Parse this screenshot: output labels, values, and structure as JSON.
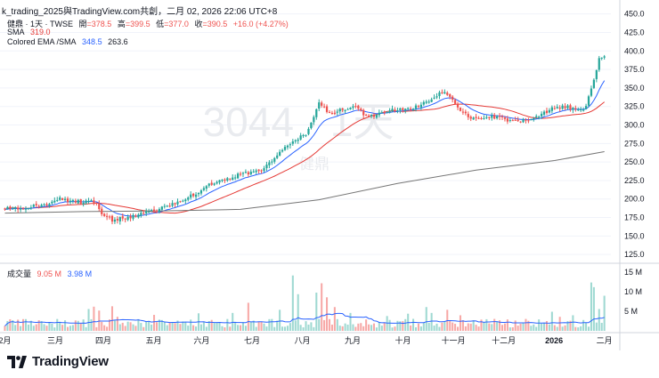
{
  "header": {
    "caption": "k_trading_2025與TradingView.com共創，二月 02, 2026 22:06 UTC+8"
  },
  "legend": {
    "symbol": "健鼎 · 1天 · TWSE",
    "open_label": "開",
    "open": "=378.5",
    "high_label": "高",
    "high": "=399.5",
    "low_label": "低",
    "low": "=377.0",
    "close_label": "收",
    "close": "=390.5",
    "change": "+16.0 (+4.27%)",
    "sma_label": "SMA",
    "sma_value": "319.0",
    "ema_label": "Colored EMA /SMA",
    "ema_value": "348.5",
    "ema_value2": "263.6",
    "volume_label": "成交量",
    "volume_value": "9.05 M",
    "volume_value2": "3.98 M"
  },
  "watermark": {
    "code": "3044 · 1天",
    "name": "健鼎"
  },
  "branding": {
    "name": "TradingView"
  },
  "colors": {
    "up": "#26a69a",
    "down": "#ef5350",
    "up_vol": "#9fd9d2",
    "down_vol": "#f7a9a7",
    "ema": "#2962ff",
    "sma": "#e53935",
    "sma200": "#757575",
    "volume_ma": "#2962ff",
    "grid": "#f0f3fa",
    "axis_text": "#131722"
  },
  "chart_data": {
    "type": "candlestick",
    "title": "健鼎 · 1天 · TWSE",
    "price_axis": {
      "ticks": [
        125,
        150,
        175,
        200,
        225,
        250,
        275,
        300,
        325,
        350,
        375,
        400,
        425,
        450
      ],
      "range": [
        118,
        452
      ]
    },
    "volume_axis": {
      "ticks": [
        "5 M",
        "10 M",
        "15 M"
      ],
      "tick_values": [
        5,
        10,
        15
      ],
      "range": [
        0,
        15.5
      ]
    },
    "x_axis": {
      "labels": [
        "2月",
        "三月",
        "四月",
        "五月",
        "六月",
        "七月",
        "八月",
        "九月",
        "十月",
        "十一月",
        "十二月",
        "2026",
        "二月"
      ]
    },
    "price_path": [
      [
        0,
        187
      ],
      [
        10,
        189
      ],
      [
        17,
        192
      ],
      [
        21,
        201
      ],
      [
        25,
        198
      ],
      [
        30,
        196
      ],
      [
        34,
        197
      ],
      [
        36,
        196
      ],
      [
        38,
        180
      ],
      [
        42,
        172
      ],
      [
        47,
        175
      ],
      [
        51,
        178
      ],
      [
        56,
        182
      ],
      [
        60,
        186
      ],
      [
        65,
        193
      ],
      [
        70,
        201
      ],
      [
        75,
        210
      ],
      [
        80,
        221
      ],
      [
        85,
        226
      ],
      [
        90,
        233
      ],
      [
        95,
        236
      ],
      [
        100,
        241
      ],
      [
        106,
        262
      ],
      [
        111,
        278
      ],
      [
        116,
        288
      ],
      [
        121,
        328
      ],
      [
        125,
        317
      ],
      [
        130,
        320
      ],
      [
        135,
        324
      ],
      [
        140,
        310
      ],
      [
        145,
        317
      ],
      [
        150,
        322
      ],
      [
        155,
        321
      ],
      [
        160,
        327
      ],
      [
        164,
        336
      ],
      [
        168,
        345
      ],
      [
        171,
        339
      ],
      [
        175,
        320
      ],
      [
        180,
        308
      ],
      [
        185,
        311
      ],
      [
        190,
        309
      ],
      [
        195,
        305
      ],
      [
        200,
        307
      ],
      [
        205,
        312
      ],
      [
        210,
        322
      ],
      [
        215,
        325
      ],
      [
        220,
        321
      ],
      [
        222,
        318
      ],
      [
        224,
        338
      ],
      [
        226,
        362
      ],
      [
        228,
        388
      ],
      [
        230,
        391
      ]
    ],
    "sma200_path": [
      [
        0,
        181
      ],
      [
        30,
        183
      ],
      [
        60,
        184
      ],
      [
        90,
        186
      ],
      [
        120,
        199
      ],
      [
        150,
        221
      ],
      [
        180,
        239
      ],
      [
        210,
        252
      ],
      [
        230,
        264
      ]
    ],
    "series": [
      {
        "name": "K線",
        "type": "candlestick",
        "n_bars": 230
      },
      {
        "name": "EMA",
        "type": "line",
        "last": 348.5
      },
      {
        "name": "SMA",
        "type": "line",
        "last": 319.0
      },
      {
        "name": "SMA (長期)",
        "type": "line",
        "last": 263.6
      },
      {
        "name": "成交量",
        "type": "bar",
        "last": 9.05,
        "ma_last": 3.98
      }
    ],
    "volume_spikes": [
      [
        33,
        5.6
      ],
      [
        35,
        6.2
      ],
      [
        37,
        5.2
      ],
      [
        42,
        6.3
      ],
      [
        44,
        3.6
      ],
      [
        58,
        4.1
      ],
      [
        75,
        4.5
      ],
      [
        88,
        4.6
      ],
      [
        94,
        7.2
      ],
      [
        106,
        5.4
      ],
      [
        111,
        14.2
      ],
      [
        113,
        9.4
      ],
      [
        120,
        9.8
      ],
      [
        122,
        12.2
      ],
      [
        124,
        8.6
      ],
      [
        127,
        6.1
      ],
      [
        133,
        4.6
      ],
      [
        147,
        3.8
      ],
      [
        155,
        4.4
      ],
      [
        162,
        6.1
      ],
      [
        164,
        4.6
      ],
      [
        170,
        5.4
      ],
      [
        175,
        4.0
      ],
      [
        210,
        4.9
      ],
      [
        213,
        3.6
      ],
      [
        218,
        4.0
      ],
      [
        225,
        12.4
      ],
      [
        226,
        11.2
      ],
      [
        228,
        5.6
      ],
      [
        230,
        9.0
      ]
    ]
  }
}
